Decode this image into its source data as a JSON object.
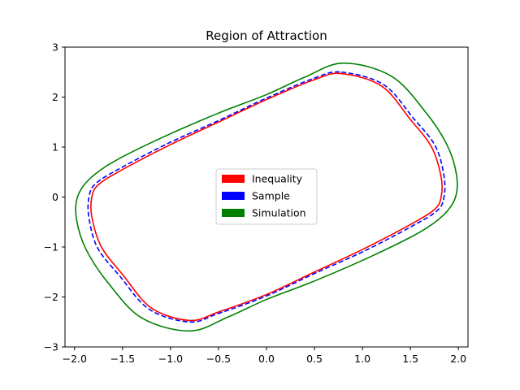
{
  "chart_data": {
    "type": "line",
    "title": "Region of Attraction",
    "xlabel": "",
    "ylabel": "",
    "xlim": [
      -2.1,
      2.1
    ],
    "ylim": [
      -3,
      3
    ],
    "x_ticks": [
      -2.0,
      -1.5,
      -1.0,
      -0.5,
      0.0,
      0.5,
      1.0,
      1.5,
      2.0
    ],
    "x_tick_labels": [
      "−2.0",
      "−1.5",
      "−1.0",
      "−0.5",
      "0.0",
      "0.5",
      "1.0",
      "1.5",
      "2.0"
    ],
    "y_ticks": [
      -3,
      -2,
      -1,
      0,
      1,
      2,
      3
    ],
    "y_tick_labels": [
      "−3",
      "−2",
      "−1",
      "0",
      "1",
      "2",
      "3"
    ],
    "grid": false,
    "legend_position": "center",
    "series": [
      {
        "name": "Inequality",
        "color": "#ff0000",
        "style": "solid",
        "closed": true,
        "points": [
          [
            0.78,
            2.47
          ],
          [
            1.2,
            2.22
          ],
          [
            1.5,
            1.55
          ],
          [
            1.72,
            1.0
          ],
          [
            1.82,
            0.4
          ],
          [
            1.82,
            0.0
          ],
          [
            1.75,
            -0.25
          ],
          [
            1.5,
            -0.55
          ],
          [
            1.0,
            -1.05
          ],
          [
            0.5,
            -1.5
          ],
          [
            0.0,
            -1.95
          ],
          [
            -0.5,
            -2.3
          ],
          [
            -0.8,
            -2.47
          ],
          [
            -1.2,
            -2.22
          ],
          [
            -1.5,
            -1.55
          ],
          [
            -1.72,
            -1.0
          ],
          [
            -1.82,
            -0.4
          ],
          [
            -1.82,
            0.0
          ],
          [
            -1.75,
            0.25
          ],
          [
            -1.5,
            0.55
          ],
          [
            -1.0,
            1.05
          ],
          [
            -0.5,
            1.5
          ],
          [
            0.0,
            1.95
          ],
          [
            0.5,
            2.35
          ]
        ]
      },
      {
        "name": "Sample",
        "color": "#0000ff",
        "style": "dashed",
        "closed": true,
        "points": [
          [
            0.78,
            2.5
          ],
          [
            1.22,
            2.25
          ],
          [
            1.53,
            1.58
          ],
          [
            1.76,
            1.02
          ],
          [
            1.85,
            0.42
          ],
          [
            1.85,
            0.0
          ],
          [
            1.78,
            -0.27
          ],
          [
            1.52,
            -0.58
          ],
          [
            1.02,
            -1.08
          ],
          [
            0.5,
            -1.53
          ],
          [
            0.0,
            -1.98
          ],
          [
            -0.5,
            -2.33
          ],
          [
            -0.8,
            -2.5
          ],
          [
            -1.22,
            -2.25
          ],
          [
            -1.53,
            -1.58
          ],
          [
            -1.76,
            -1.02
          ],
          [
            -1.85,
            -0.42
          ],
          [
            -1.85,
            0.0
          ],
          [
            -1.78,
            0.27
          ],
          [
            -1.52,
            0.58
          ],
          [
            -1.02,
            1.08
          ],
          [
            -0.5,
            1.53
          ],
          [
            0.0,
            1.98
          ],
          [
            0.5,
            2.38
          ]
        ]
      },
      {
        "name": "Simulation",
        "color": "#008000",
        "style": "solid",
        "closed": true,
        "points": [
          [
            0.8,
            2.68
          ],
          [
            1.3,
            2.42
          ],
          [
            1.65,
            1.72
          ],
          [
            1.88,
            1.05
          ],
          [
            1.98,
            0.45
          ],
          [
            1.97,
            0.0
          ],
          [
            1.85,
            -0.35
          ],
          [
            1.6,
            -0.7
          ],
          [
            1.1,
            -1.18
          ],
          [
            0.5,
            -1.68
          ],
          [
            0.0,
            -2.05
          ],
          [
            -0.4,
            -2.4
          ],
          [
            -0.8,
            -2.68
          ],
          [
            -1.3,
            -2.42
          ],
          [
            -1.65,
            -1.72
          ],
          [
            -1.88,
            -1.05
          ],
          [
            -1.98,
            -0.45
          ],
          [
            -1.97,
            0.0
          ],
          [
            -1.85,
            0.35
          ],
          [
            -1.6,
            0.7
          ],
          [
            -1.1,
            1.18
          ],
          [
            -0.5,
            1.68
          ],
          [
            0.0,
            2.05
          ],
          [
            0.4,
            2.4
          ]
        ]
      }
    ]
  }
}
